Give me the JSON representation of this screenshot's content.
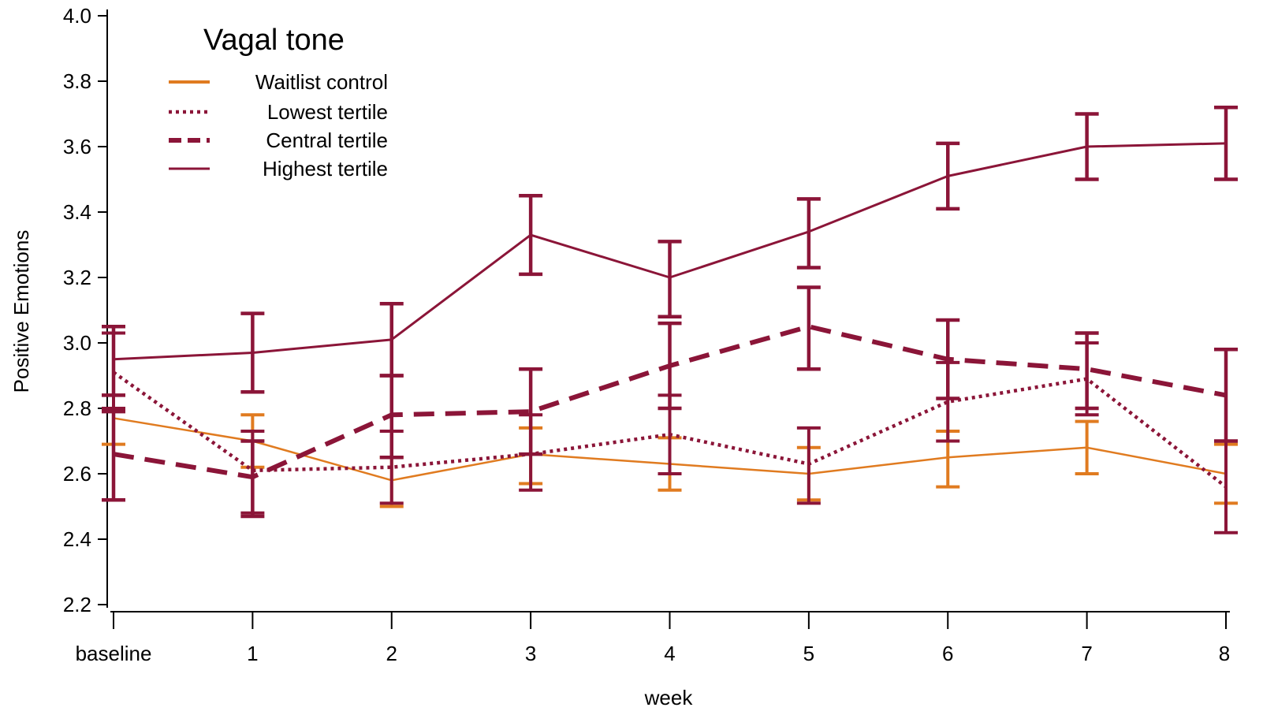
{
  "chart_data": {
    "type": "line",
    "title": "",
    "xlabel": "week",
    "ylabel": "Positive Emotions",
    "categories": [
      "baseline",
      "1",
      "2",
      "3",
      "4",
      "5",
      "6",
      "7",
      "8"
    ],
    "ylim": [
      2.2,
      4.0
    ],
    "yticks": [
      "2.2",
      "2.4",
      "2.6",
      "2.8",
      "3.0",
      "3.2",
      "3.4",
      "3.6",
      "3.8",
      "4.0"
    ],
    "grid": false,
    "legend": {
      "title": "Vagal tone",
      "position": "top-left"
    },
    "series": [
      {
        "name": "Waitlist control",
        "color": "#e07b20",
        "style": "solid-thin",
        "values": [
          2.77,
          2.7,
          2.58,
          2.66,
          2.63,
          2.6,
          2.65,
          2.68,
          2.6
        ],
        "err_low": [
          2.69,
          2.62,
          2.5,
          2.57,
          2.55,
          2.52,
          2.56,
          2.6,
          2.51
        ],
        "err_high": [
          2.84,
          2.78,
          2.65,
          2.74,
          2.71,
          2.68,
          2.73,
          2.76,
          2.69
        ]
      },
      {
        "name": "Lowest tertile",
        "color": "#8b1538",
        "style": "dotted",
        "values": [
          2.91,
          2.61,
          2.62,
          2.66,
          2.72,
          2.63,
          2.82,
          2.89,
          2.56
        ],
        "err_low": [
          2.8,
          2.48,
          2.51,
          2.55,
          2.6,
          2.51,
          2.7,
          2.78,
          2.42
        ],
        "err_high": [
          3.03,
          2.73,
          2.73,
          2.78,
          2.84,
          2.74,
          2.94,
          3.0,
          2.7
        ]
      },
      {
        "name": "Central tertile",
        "color": "#8b1538",
        "style": "dashed",
        "values": [
          2.66,
          2.59,
          2.78,
          2.79,
          2.93,
          3.05,
          2.95,
          2.92,
          2.84
        ],
        "err_low": [
          2.52,
          2.47,
          2.65,
          2.66,
          2.8,
          2.92,
          2.83,
          2.8,
          2.7
        ],
        "err_high": [
          2.79,
          2.7,
          2.9,
          2.92,
          3.06,
          3.17,
          3.07,
          3.03,
          2.98
        ]
      },
      {
        "name": "Highest tertile",
        "color": "#8b1538",
        "style": "solid",
        "values": [
          2.95,
          2.97,
          3.01,
          3.33,
          3.2,
          3.34,
          3.51,
          3.6,
          3.61
        ],
        "err_low": [
          2.84,
          2.85,
          2.9,
          3.21,
          3.08,
          3.23,
          3.41,
          3.5,
          3.5
        ],
        "err_high": [
          3.05,
          3.09,
          3.12,
          3.45,
          3.31,
          3.44,
          3.61,
          3.7,
          3.72
        ]
      }
    ]
  }
}
